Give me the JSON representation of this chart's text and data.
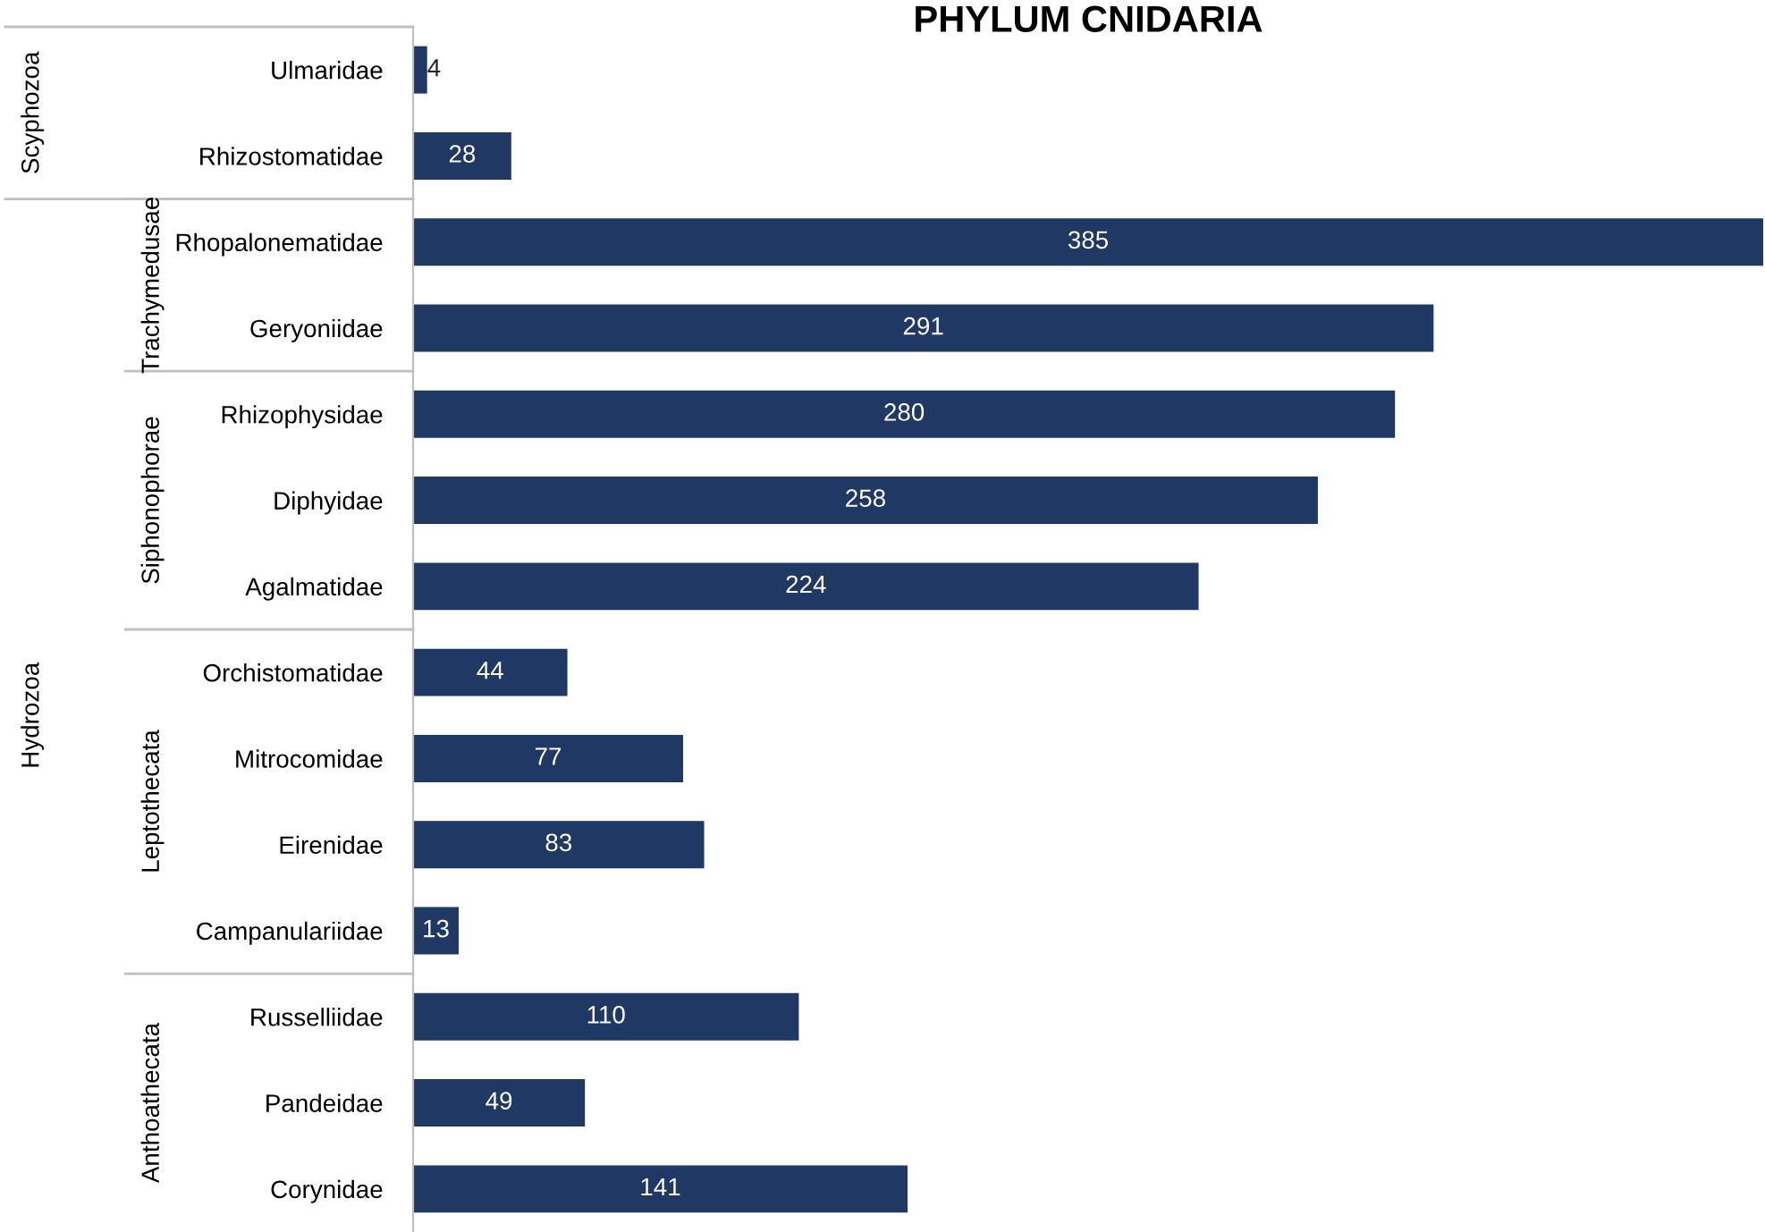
{
  "chart_data": {
    "type": "bar",
    "orientation": "horizontal",
    "title": "PHYLUM CNIDARIA",
    "categories": [
      "Ulmaridae",
      "Rhizostomatidae",
      "Rhopalonematidae",
      "Geryoniidae",
      "Rhizophysidae",
      "Diphyidae",
      "Agalmatidae",
      "Orchistomatidae",
      "Mitrocomidae",
      "Eirenidae",
      "Campanulariidae",
      "Russelliidae",
      "Pandeidae",
      "Corynidae"
    ],
    "values": [
      4,
      28,
      385,
      291,
      280,
      258,
      224,
      44,
      77,
      83,
      13,
      110,
      49,
      141
    ],
    "color": "#1f3864",
    "xlim": [
      0,
      385
    ],
    "data_labels": true,
    "grid": false,
    "legend": false,
    "tick_labels": "y",
    "annotations": [
      "Scyphozoa",
      "Hydrozoa",
      "Trachymedusae",
      "Siphonophorae",
      "Leptothecata",
      "Anthoathecata"
    ]
  }
}
